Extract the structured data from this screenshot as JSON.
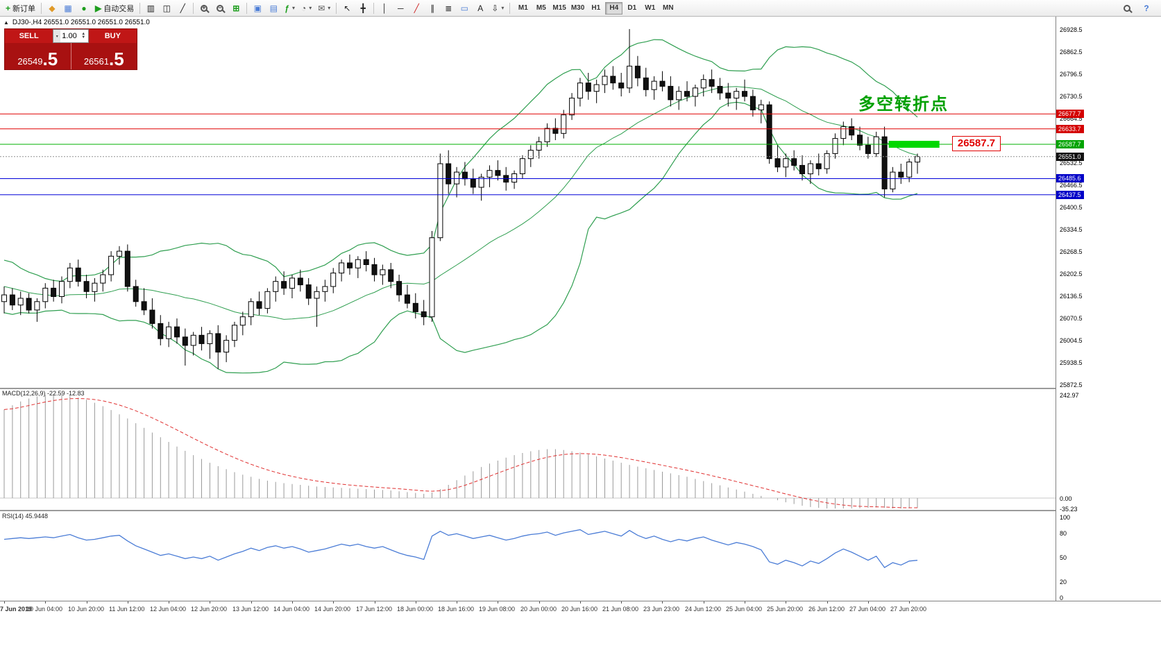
{
  "toolbar": {
    "new_order_label": "新订单",
    "autotrade_label": "自动交易",
    "timeframes": [
      "M1",
      "M5",
      "M15",
      "M30",
      "H1",
      "H4",
      "D1",
      "W1",
      "MN"
    ],
    "active_timeframe": "H4"
  },
  "icons": {
    "new_order": "+",
    "market_watch": "◆",
    "data_window": "▦",
    "navigator": "●",
    "autotrade": "▶",
    "chart_bars": "▥",
    "chart_candles": "◫",
    "chart_line": "╱",
    "tile_windows": "⊞",
    "arrange": "▣",
    "cascade": "▤",
    "indicators": "ƒ",
    "periods": "◔",
    "templates": "✉",
    "cursor": "↖",
    "crosshair": "╋",
    "vline": "│",
    "hline": "─",
    "trendline": "╱",
    "channel": "∥",
    "fibonacci": "≣",
    "shapes": "▭",
    "text": "A",
    "arrows": "⇩",
    "caret": "▾",
    "help": "?"
  },
  "one_click": {
    "sell_label": "SELL",
    "buy_label": "BUY",
    "volume": "1.00",
    "sell_price_main": "26549",
    "sell_price_big": ".5",
    "buy_price_main": "26561",
    "buy_price_big": ".5"
  },
  "chart": {
    "symbol_ohlc": "DJ30-,H4 26551.0 26551.0 26551.0 26551.0",
    "annotation": "多空转折点",
    "price_tag": "26587.7"
  },
  "chart_data": {
    "type": "candlestick",
    "symbol": "DJ30-",
    "timeframe": "H4",
    "main_range": {
      "pmax": 26967,
      "pmin": 25864
    },
    "y_axis": {
      "ticks": [
        26928.5,
        26862.5,
        26796.5,
        26730.5,
        26664.5,
        26532.5,
        26466.5,
        26400.5,
        26334.5,
        26268.5,
        26202.5,
        26136.5,
        26070.5,
        26004.5,
        25938.5,
        25872.5
      ],
      "markers": [
        {
          "price": 26677.7,
          "bg": "#d40000"
        },
        {
          "price": 26633.7,
          "bg": "#d40000"
        },
        {
          "price": 26587.7,
          "bg": "#00a400"
        },
        {
          "price": 26551.0,
          "bg": "#111111"
        },
        {
          "price": 26485.6,
          "bg": "#0000c8"
        },
        {
          "price": 26437.5,
          "bg": "#0000c8"
        }
      ]
    },
    "hlines": [
      {
        "price": 26677.7,
        "color": "#e00000",
        "dash": ""
      },
      {
        "price": 26633.7,
        "color": "#e00000",
        "dash": ""
      },
      {
        "price": 26587.7,
        "color": "#00b000",
        "dash": ""
      },
      {
        "price": 26551.0,
        "color": "#909090",
        "dash": "2,2"
      },
      {
        "price": 26485.6,
        "color": "#0000d8",
        "dash": ""
      },
      {
        "price": 26437.5,
        "color": "#0000d8",
        "dash": ""
      }
    ],
    "highlight": {
      "price": 26587.7,
      "x1_frac": 0.842,
      "x2_frac": 0.89,
      "color": "#00d800"
    },
    "bollinger": {
      "period": 20,
      "deviation": 2,
      "color": "#2e9e4f"
    },
    "history_closes": [
      26240,
      26220,
      26250,
      26230,
      26200,
      26210,
      26180,
      26190,
      26160,
      26170,
      26150,
      26160,
      26140,
      26150,
      26130,
      26140,
      26120,
      26130,
      26110,
      26120
    ],
    "candles": [
      [
        26120,
        26165,
        26085,
        26140
      ],
      [
        26140,
        26160,
        26095,
        26110
      ],
      [
        26110,
        26150,
        26080,
        26130
      ],
      [
        26130,
        26145,
        26085,
        26095
      ],
      [
        26095,
        26130,
        26060,
        26120
      ],
      [
        26120,
        26175,
        26100,
        26160
      ],
      [
        26160,
        26185,
        26120,
        26135
      ],
      [
        26135,
        26195,
        26115,
        26180
      ],
      [
        26180,
        26235,
        26160,
        26220
      ],
      [
        26220,
        26245,
        26165,
        26180
      ],
      [
        26180,
        26200,
        26130,
        26150
      ],
      [
        26150,
        26190,
        26120,
        26175
      ],
      [
        26175,
        26215,
        26150,
        26200
      ],
      [
        26200,
        26270,
        26180,
        26255
      ],
      [
        26255,
        26285,
        26230,
        26270
      ],
      [
        26270,
        26290,
        26150,
        26165
      ],
      [
        26165,
        26185,
        26105,
        26120
      ],
      [
        26120,
        26160,
        26080,
        26095
      ],
      [
        26095,
        26130,
        26040,
        26055
      ],
      [
        26055,
        26080,
        25990,
        26010
      ],
      [
        26010,
        26060,
        25985,
        26045
      ],
      [
        26045,
        26070,
        25995,
        26015
      ],
      [
        26015,
        26040,
        25930,
        25990
      ],
      [
        25990,
        26030,
        25960,
        26020
      ],
      [
        26020,
        26045,
        25975,
        25995
      ],
      [
        25995,
        26035,
        25950,
        26025
      ],
      [
        26025,
        26050,
        25920,
        25970
      ],
      [
        25970,
        26020,
        25940,
        26005
      ],
      [
        26005,
        26060,
        25985,
        26050
      ],
      [
        26050,
        26090,
        26020,
        26075
      ],
      [
        26075,
        26130,
        26050,
        26120
      ],
      [
        26120,
        26150,
        26080,
        26100
      ],
      [
        26100,
        26160,
        26085,
        26150
      ],
      [
        26150,
        26195,
        26120,
        26180
      ],
      [
        26180,
        26210,
        26140,
        26160
      ],
      [
        26160,
        26200,
        26130,
        26190
      ],
      [
        26190,
        26215,
        26150,
        26170
      ],
      [
        26170,
        26190,
        26110,
        26130
      ],
      [
        26130,
        26165,
        26045,
        26150
      ],
      [
        26150,
        26185,
        26120,
        26165
      ],
      [
        26165,
        26220,
        26145,
        26205
      ],
      [
        26205,
        26245,
        26180,
        26235
      ],
      [
        26235,
        26260,
        26200,
        26220
      ],
      [
        26220,
        26255,
        26190,
        26245
      ],
      [
        26245,
        26270,
        26210,
        26230
      ],
      [
        26230,
        26250,
        26180,
        26200
      ],
      [
        26200,
        26230,
        26170,
        26215
      ],
      [
        26215,
        26235,
        26160,
        26180
      ],
      [
        26180,
        26200,
        26120,
        26140
      ],
      [
        26140,
        26170,
        26100,
        26115
      ],
      [
        26115,
        26145,
        26070,
        26090
      ],
      [
        26090,
        26125,
        26050,
        26075
      ],
      [
        26075,
        26330,
        26060,
        26310
      ],
      [
        26310,
        26560,
        26300,
        26530
      ],
      [
        26530,
        26570,
        26440,
        26470
      ],
      [
        26470,
        26520,
        26430,
        26505
      ],
      [
        26505,
        26535,
        26465,
        26485
      ],
      [
        26485,
        26515,
        26440,
        26460
      ],
      [
        26460,
        26500,
        26420,
        26490
      ],
      [
        26490,
        26525,
        26460,
        26510
      ],
      [
        26510,
        26540,
        26480,
        26495
      ],
      [
        26495,
        26520,
        26450,
        26475
      ],
      [
        26475,
        26510,
        26455,
        26500
      ],
      [
        26500,
        26555,
        26485,
        26545
      ],
      [
        26545,
        26585,
        26520,
        26570
      ],
      [
        26570,
        26610,
        26545,
        26595
      ],
      [
        26595,
        26650,
        26580,
        26635
      ],
      [
        26635,
        26665,
        26600,
        26620
      ],
      [
        26620,
        26690,
        26605,
        26675
      ],
      [
        26675,
        26740,
        26660,
        26725
      ],
      [
        26725,
        26785,
        26700,
        26770
      ],
      [
        26770,
        26800,
        26720,
        26745
      ],
      [
        26745,
        26780,
        26710,
        26765
      ],
      [
        26765,
        26810,
        26740,
        26790
      ],
      [
        26790,
        26820,
        26750,
        26770
      ],
      [
        26770,
        26800,
        26730,
        26755
      ],
      [
        26755,
        26930,
        26740,
        26820
      ],
      [
        26820,
        26850,
        26760,
        26785
      ],
      [
        26785,
        26815,
        26730,
        26750
      ],
      [
        26750,
        26790,
        26720,
        26775
      ],
      [
        26775,
        26805,
        26745,
        26760
      ],
      [
        26760,
        26790,
        26700,
        26720
      ],
      [
        26720,
        26760,
        26690,
        26745
      ],
      [
        26745,
        26775,
        26715,
        26730
      ],
      [
        26730,
        26765,
        26700,
        26755
      ],
      [
        26755,
        26795,
        26730,
        26780
      ],
      [
        26780,
        26810,
        26740,
        26760
      ],
      [
        26760,
        26785,
        26720,
        26740
      ],
      [
        26740,
        26770,
        26700,
        26725
      ],
      [
        26725,
        26755,
        26690,
        26745
      ],
      [
        26745,
        26780,
        26715,
        26730
      ],
      [
        26730,
        26750,
        26670,
        26690
      ],
      [
        26690,
        26720,
        26650,
        26705
      ],
      [
        26705,
        26715,
        26530,
        26545
      ],
      [
        26545,
        26585,
        26505,
        26520
      ],
      [
        26520,
        26560,
        26490,
        26545
      ],
      [
        26545,
        26570,
        26510,
        26525
      ],
      [
        26525,
        26555,
        26480,
        26500
      ],
      [
        26500,
        26540,
        26470,
        26530
      ],
      [
        26530,
        26560,
        26495,
        26515
      ],
      [
        26515,
        26570,
        26500,
        26560
      ],
      [
        26560,
        26620,
        26545,
        26605
      ],
      [
        26605,
        26655,
        26585,
        26640
      ],
      [
        26640,
        26665,
        26600,
        26615
      ],
      [
        26615,
        26640,
        26570,
        26585
      ],
      [
        26585,
        26610,
        26545,
        26560
      ],
      [
        26560,
        26625,
        26550,
        26610
      ],
      [
        26610,
        26640,
        26430,
        26455
      ],
      [
        26455,
        26520,
        26445,
        26505
      ],
      [
        26505,
        26530,
        26470,
        26490
      ],
      [
        26490,
        26545,
        26475,
        26535
      ],
      [
        26535,
        26560,
        26500,
        26551
      ]
    ],
    "macd": {
      "label": "MACD(12,26,9) -22.59 -12.83",
      "scale": [
        "242.97",
        "0.00",
        "-35.23"
      ],
      "range": [
        -35.23,
        242.97
      ],
      "histogram": [
        208,
        218,
        227,
        234,
        239,
        242,
        243,
        242,
        240,
        236,
        231,
        224,
        216,
        207,
        197,
        187,
        176,
        165,
        154,
        143,
        132,
        121,
        111,
        101,
        92,
        83,
        75,
        68,
        61,
        55,
        50,
        45,
        41,
        38,
        35,
        33,
        31,
        29,
        27,
        26,
        25,
        24,
        23,
        22,
        21,
        20,
        19,
        18,
        16,
        14,
        12,
        10,
        13,
        21,
        31,
        42,
        53,
        63,
        73,
        81,
        88,
        95,
        101,
        106,
        110,
        113,
        115,
        115,
        113,
        110,
        107,
        103,
        98,
        93,
        88,
        83,
        78,
        74,
        70,
        66,
        62,
        58,
        54,
        50,
        45,
        40,
        35,
        30,
        25,
        20,
        15,
        10,
        5,
        0,
        -5,
        -10,
        -14,
        -18,
        -21,
        -23,
        -25,
        -26,
        -26,
        -25,
        -24,
        -23,
        -22,
        -23,
        -25,
        -26,
        -24,
        -22.59
      ]
    },
    "rsi": {
      "label": "RSI(14) 45.9448",
      "scale": [
        100,
        80,
        50,
        20,
        0
      ],
      "values": [
        72,
        73,
        74,
        73,
        74,
        75,
        74,
        76,
        78,
        74,
        71,
        72,
        74,
        76,
        77,
        70,
        64,
        60,
        56,
        52,
        54,
        51,
        48,
        50,
        48,
        51,
        46,
        50,
        54,
        57,
        61,
        58,
        62,
        64,
        61,
        63,
        60,
        56,
        58,
        60,
        63,
        66,
        64,
        66,
        63,
        61,
        63,
        59,
        55,
        52,
        50,
        47,
        76,
        82,
        77,
        79,
        76,
        73,
        75,
        77,
        74,
        71,
        73,
        76,
        78,
        79,
        81,
        77,
        80,
        82,
        84,
        78,
        80,
        82,
        79,
        76,
        83,
        77,
        73,
        76,
        72,
        69,
        72,
        70,
        73,
        75,
        71,
        68,
        65,
        68,
        66,
        63,
        59,
        44,
        41,
        46,
        43,
        39,
        45,
        42,
        48,
        55,
        60,
        56,
        51,
        46,
        51,
        37,
        43,
        40,
        45,
        45.94
      ]
    },
    "x_label_step": 5,
    "x_labels": [
      "7 Jun 2019",
      "10 Jun 04:00",
      "10 Jun 20:00",
      "11 Jun 12:00",
      "12 Jun 04:00",
      "12 Jun 20:00",
      "13 Jun 12:00",
      "14 Jun 04:00",
      "14 Jun 20:00",
      "17 Jun 12:00",
      "18 Jun 00:00",
      "18 Jun 16:00",
      "19 Jun 08:00",
      "20 Jun 00:00",
      "20 Jun 16:00",
      "21 Jun 08:00",
      "23 Jun 23:00",
      "24 Jun 12:00",
      "25 Jun 04:00",
      "25 Jun 20:00",
      "26 Jun 12:00",
      "27 Jun 04:00",
      "27 Jun 20:00"
    ]
  }
}
